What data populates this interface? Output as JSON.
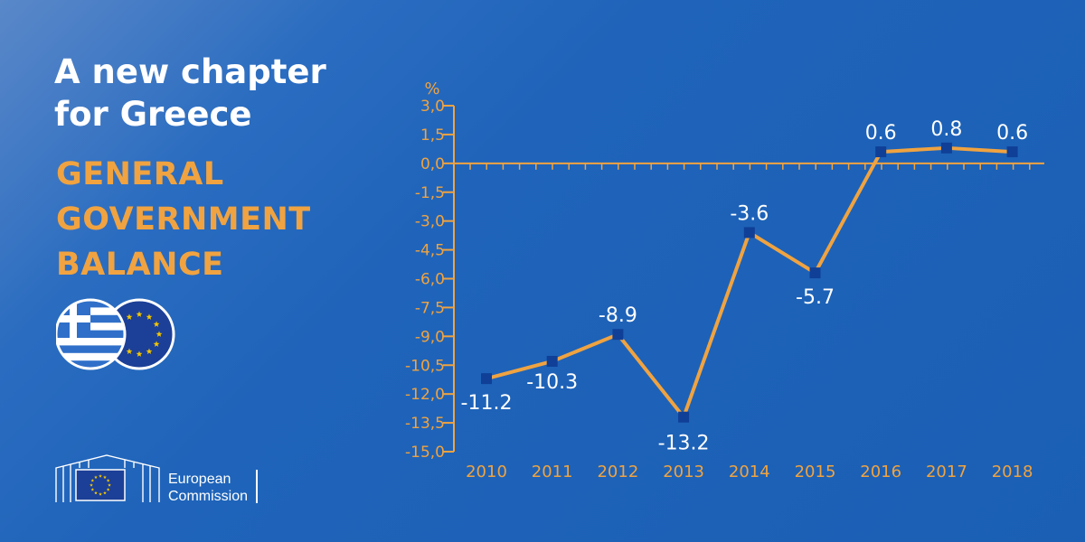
{
  "title": {
    "line1": "A new chapter",
    "line2": "for Greece"
  },
  "subtitle": {
    "line1": "GENERAL",
    "line2": "GOVERNMENT",
    "line3": "BALANCE"
  },
  "logo": {
    "line1": "European",
    "line2": "Commission"
  },
  "colors": {
    "accent": "#f0a340",
    "marker": "#0f3f97",
    "text": "#ffffff"
  },
  "chart_data": {
    "type": "line",
    "ylabel": "%",
    "ylim": [
      -15,
      3
    ],
    "y_ticks": [
      "3,0",
      "1,5",
      "0,0",
      "-1,5",
      "-3,0",
      "-4,5",
      "-6,0",
      "-7,5",
      "-9,0",
      "-10,5",
      "-12,0",
      "-13,5",
      "-15,0"
    ],
    "categories": [
      "2010",
      "2011",
      "2012",
      "2013",
      "2014",
      "2015",
      "2016",
      "2017",
      "2018"
    ],
    "values": [
      -11.2,
      -10.3,
      -8.9,
      -13.2,
      -3.6,
      -5.7,
      0.6,
      0.8,
      0.6
    ],
    "data_labels": [
      "-11.2",
      "-10.3",
      "-8.9",
      "-13.2",
      "-3.6",
      "-5.7",
      "0.6",
      "0.8",
      "0.6"
    ],
    "grid": false
  }
}
